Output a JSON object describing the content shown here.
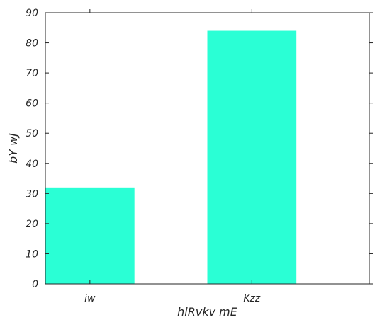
{
  "chart_data": {
    "type": "bar",
    "categories": [
      "iw",
      "Kzz"
    ],
    "values": [
      32,
      84
    ],
    "xlabel": "hiRvkv mE",
    "ylabel": "bY wJ",
    "ylim": [
      0,
      90
    ],
    "yticks": [
      0,
      10,
      20,
      30,
      40,
      50,
      60,
      70,
      80,
      90
    ],
    "grid": false,
    "legend": "none",
    "colors": {
      "bar": "#2affd5",
      "axis": "#262626",
      "background": "#ffffff"
    }
  }
}
